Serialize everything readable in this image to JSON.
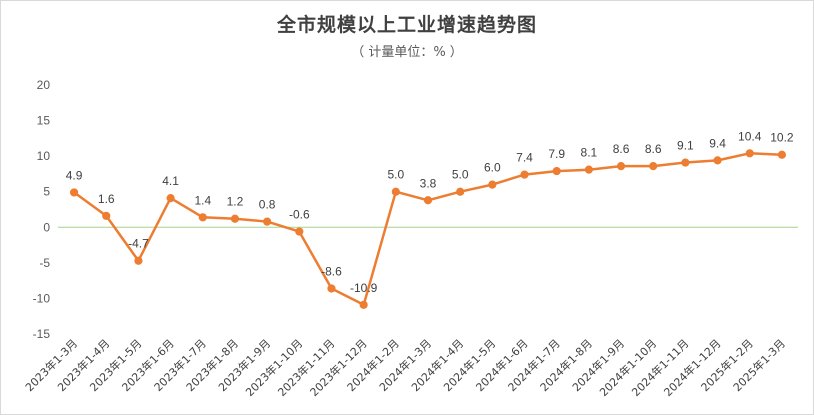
{
  "chart_data": {
    "type": "line",
    "title": "全市规模以上工业增速趋势图",
    "subtitle": "（ 计量单位：% ）",
    "categories": [
      "2023年1-3月",
      "2023年1-4月",
      "2023年1-5月",
      "2023年1-6月",
      "2023年1-7月",
      "2023年1-8月",
      "2023年1-9月",
      "2023年1-10月",
      "2023年1-11月",
      "2023年1-12月",
      "2024年1-2月",
      "2024年1-3月",
      "2024年1-4月",
      "2024年1-5月",
      "2024年1-6月",
      "2024年1-7月",
      "2024年1-8月",
      "2024年1-9月",
      "2024年1-10月",
      "2024年1-11月",
      "2024年1-12月",
      "2025年1-2月",
      "2025年1-3月"
    ],
    "values": [
      4.9,
      1.6,
      -4.7,
      4.1,
      1.4,
      1.2,
      0.8,
      -0.6,
      -8.6,
      -10.9,
      5.0,
      3.8,
      5.0,
      6.0,
      7.4,
      7.9,
      8.1,
      8.6,
      8.6,
      9.1,
      9.4,
      10.4,
      10.2
    ],
    "data_labels": [
      "4.9",
      "1.6",
      "-4.7",
      "4.1",
      "1.4",
      "1.2",
      "0.8",
      "-0.6",
      "-8.6",
      "-10.9",
      "5.0",
      "3.8",
      "5.0",
      "6.0",
      "7.4",
      "7.9",
      "8.1",
      "8.6",
      "8.6",
      "9.1",
      "9.4",
      "10.4",
      "10.2"
    ],
    "ylim": [
      -15,
      20
    ],
    "yticks": [
      "20",
      "15",
      "10",
      "5",
      "0",
      "-5",
      "-10",
      "-15"
    ],
    "line_color": "#ed7d31",
    "zero_line_color": "#a9d18e",
    "grid": false,
    "legend": "none"
  }
}
